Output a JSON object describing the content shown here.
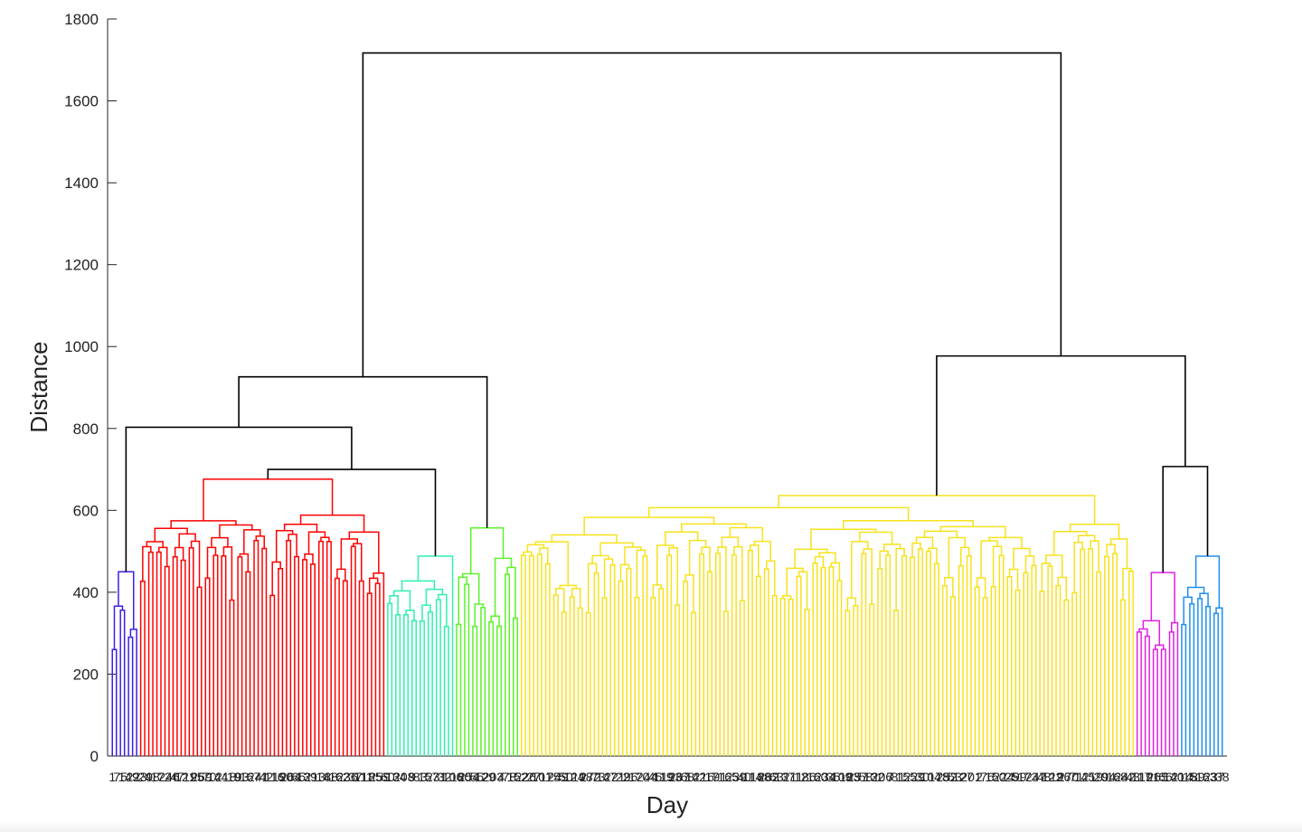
{
  "chart_data": {
    "type": "dendrogram",
    "xlabel": "Day",
    "ylabel": "Distance",
    "ylim": [
      0,
      1800
    ],
    "yticks": [
      0,
      200,
      400,
      600,
      800,
      1000,
      1200,
      1400,
      1600,
      1800
    ],
    "leaf_count": 275,
    "grid": false,
    "colors": {
      "link_above_threshold": "#000000",
      "clusters": [
        "#3b1fe8",
        "#ff0000",
        "#2ff0b0",
        "#5cf22a",
        "#f7e21c",
        "#e020e0",
        "#1e8ff0"
      ]
    },
    "clusters": [
      {
        "color": "#3b1fe8",
        "leaf_range": [
          0,
          7
        ],
        "top_distance": 450
      },
      {
        "color": "#ff0000",
        "leaf_range": [
          7,
          68
        ],
        "top_distance": 676
      },
      {
        "color": "#2ff0b0",
        "leaf_range": [
          68,
          85
        ],
        "top_distance": 488
      },
      {
        "color": "#5cf22a",
        "leaf_range": [
          85,
          101
        ],
        "top_distance": 557
      },
      {
        "color": "#f7e21c",
        "leaf_range": [
          101,
          253
        ],
        "top_distance": 636
      },
      {
        "color": "#e020e0",
        "leaf_range": [
          253,
          264
        ],
        "top_distance": 448
      },
      {
        "color": "#1e8ff0",
        "leaf_range": [
          264,
          275
        ],
        "top_distance": 488
      }
    ],
    "upper_merges": [
      {
        "children": [
          "red",
          "cyan"
        ],
        "distance": 700
      },
      {
        "children": [
          "blue",
          "red+cyan"
        ],
        "distance": 803
      },
      {
        "children": [
          "left",
          "green"
        ],
        "distance": 926
      },
      {
        "children": [
          "magenta",
          "blue2"
        ],
        "distance": 707
      },
      {
        "children": [
          "yellow",
          "magenta+blue2"
        ],
        "distance": 977
      },
      {
        "children": [
          "left+green",
          "yellow+right"
        ],
        "distance": 1717
      }
    ]
  }
}
